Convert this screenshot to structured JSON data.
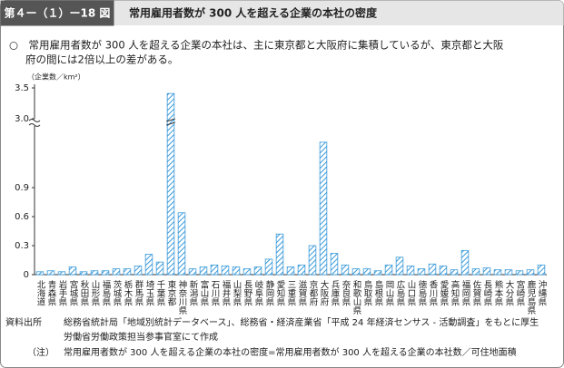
{
  "header": {
    "figure_number": "第４ー（１）ー18 図"
  },
  "lead": [
    "○　常用雇用者数が 300 人を超える企業の本社は、主に東京都と大阪府に集積しているが、東京都と大阪",
    "府の間には2倍以上の差がある。"
  ],
  "notes": {
    "source_label": "資料出所",
    "source_lines": [
      "総務省統計局「地域別統計データベース」、総務省・経済産業省「平成 24 年経済センサス - 活動調査」をもとに厚生",
      "労働省労働政策担当参事官室にて作成"
    ],
    "note_label": "（注）",
    "note_text": "常用雇用者数が 300 人を超える企業の本社の密度=常用雇用者数が 300 人を超える企業の本社数／可住地面積"
  },
  "chart_data": {
    "type": "bar",
    "title": "常用雇用者数が 300 人を超える企業の本社の密度",
    "y_label": "（企業数／km²）",
    "categories": [
      "北海道",
      "青森県",
      "岩手県",
      "宮城県",
      "秋田県",
      "山形県",
      "福島県",
      "茨城県",
      "栃木県",
      "群馬県",
      "埼玉県",
      "千葉県",
      "東京都",
      "神奈川県",
      "新潟県",
      "富山県",
      "石川県",
      "福井県",
      "山梨県",
      "長野県",
      "岐阜県",
      "静岡県",
      "愛知県",
      "三重県",
      "滋賀県",
      "京都府",
      "大阪府",
      "兵庫県",
      "奈良県",
      "和歌山県",
      "鳥取県",
      "島根県",
      "岡山県",
      "広島県",
      "山口県",
      "徳島県",
      "香川県",
      "愛媛県",
      "高知県",
      "福岡県",
      "佐賀県",
      "長崎県",
      "熊本県",
      "大分県",
      "宮崎県",
      "鹿児島県",
      "沖縄県"
    ],
    "values": [
      0.03,
      0.04,
      0.03,
      0.08,
      0.03,
      0.04,
      0.04,
      0.06,
      0.06,
      0.09,
      0.21,
      0.13,
      3.41,
      0.64,
      0.06,
      0.08,
      0.1,
      0.09,
      0.08,
      0.06,
      0.08,
      0.16,
      0.42,
      0.08,
      0.1,
      0.3,
      1.37,
      0.22,
      0.1,
      0.06,
      0.06,
      0.04,
      0.1,
      0.18,
      0.09,
      0.06,
      0.11,
      0.09,
      0.05,
      0.25,
      0.06,
      0.07,
      0.05,
      0.05,
      0.04,
      0.05,
      0.1
    ],
    "ylim": [
      0,
      3.5
    ],
    "yticks": [
      0,
      0.3,
      0.6,
      0.9,
      {
        "value": 3,
        "label": "3.0"
      },
      3.5
    ],
    "axis_break": [
      1.5,
      3
    ],
    "color": "#3a9ad9"
  }
}
